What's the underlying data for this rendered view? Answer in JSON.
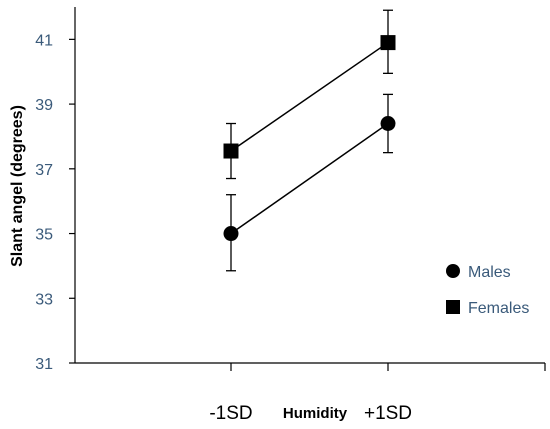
{
  "chart_data": {
    "type": "line",
    "categories": [
      "-1SD",
      "+1SD"
    ],
    "xlabel": "Humidity",
    "ylabel": "Slant angel (degrees)",
    "ylim": [
      31,
      42
    ],
    "yticks": [
      31,
      33,
      35,
      37,
      39,
      41
    ],
    "legend_position": "right",
    "series": [
      {
        "name": "Males",
        "marker": "circle",
        "values": [
          35.0,
          38.4
        ],
        "error_low": [
          33.85,
          37.5
        ],
        "error_high": [
          36.2,
          39.3
        ],
        "color": "#000000"
      },
      {
        "name": "Females",
        "marker": "square",
        "values": [
          37.55,
          40.9
        ],
        "error_low": [
          36.7,
          39.95
        ],
        "error_high": [
          38.4,
          41.9
        ],
        "color": "#000000"
      }
    ]
  }
}
